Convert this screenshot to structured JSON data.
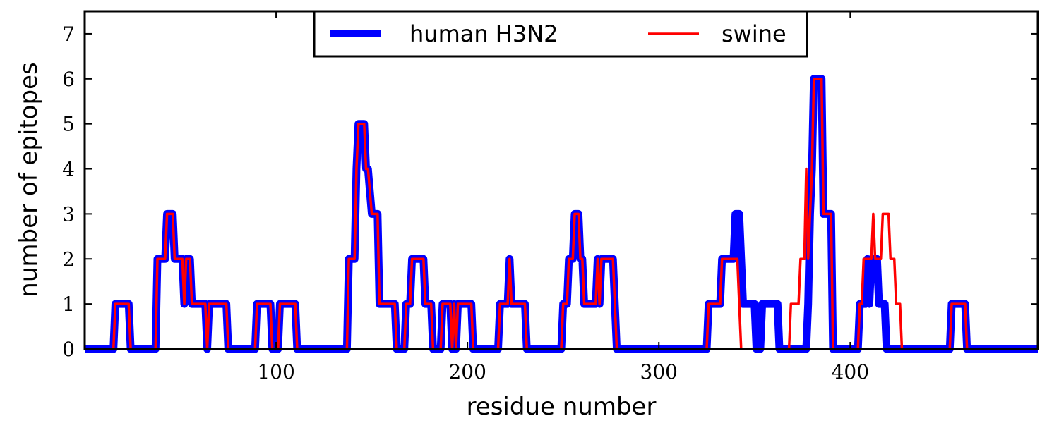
{
  "chart_data": {
    "type": "line",
    "xlabel": "residue number",
    "ylabel": "number of epitopes",
    "xlim": [
      0,
      498
    ],
    "ylim": [
      0,
      7.5
    ],
    "xticks": [
      100,
      200,
      300,
      400
    ],
    "yticks": [
      0,
      1,
      2,
      3,
      4,
      5,
      6,
      7
    ],
    "legend_position": "top-center",
    "series": [
      {
        "name": "human H3N2",
        "color": "#0000ff",
        "style": "thick",
        "points": [
          [
            0,
            0
          ],
          [
            15,
            0
          ],
          [
            16,
            1
          ],
          [
            23,
            1
          ],
          [
            24,
            0
          ],
          [
            37,
            0
          ],
          [
            38,
            2
          ],
          [
            42,
            2
          ],
          [
            43,
            3
          ],
          [
            46,
            3
          ],
          [
            47,
            2
          ],
          [
            51,
            2
          ],
          [
            52,
            1
          ],
          [
            53,
            2
          ],
          [
            55,
            2
          ],
          [
            56,
            1
          ],
          [
            63,
            1
          ],
          [
            64,
            0
          ],
          [
            65,
            1
          ],
          [
            74,
            1
          ],
          [
            75,
            0
          ],
          [
            89,
            0
          ],
          [
            90,
            1
          ],
          [
            97,
            1
          ],
          [
            98,
            0
          ],
          [
            101,
            0
          ],
          [
            102,
            1
          ],
          [
            110,
            1
          ],
          [
            111,
            0
          ],
          [
            137,
            0
          ],
          [
            138,
            2
          ],
          [
            141,
            2
          ],
          [
            142,
            4
          ],
          [
            143,
            5
          ],
          [
            146,
            5
          ],
          [
            147,
            4
          ],
          [
            148,
            4
          ],
          [
            150,
            3
          ],
          [
            153,
            3
          ],
          [
            154,
            1
          ],
          [
            162,
            1
          ],
          [
            163,
            0
          ],
          [
            167,
            0
          ],
          [
            168,
            1
          ],
          [
            170,
            1
          ],
          [
            171,
            2
          ],
          [
            177,
            2
          ],
          [
            178,
            1
          ],
          [
            181,
            1
          ],
          [
            182,
            0
          ],
          [
            186,
            0
          ],
          [
            187,
            1
          ],
          [
            191,
            1
          ],
          [
            192,
            0
          ],
          [
            193,
            1
          ],
          [
            194,
            0
          ],
          [
            195,
            1
          ],
          [
            202,
            1
          ],
          [
            203,
            0
          ],
          [
            216,
            0
          ],
          [
            217,
            1
          ],
          [
            221,
            1
          ],
          [
            222,
            2
          ],
          [
            223,
            1
          ],
          [
            230,
            1
          ],
          [
            231,
            0
          ],
          [
            249,
            0
          ],
          [
            250,
            1
          ],
          [
            252,
            1
          ],
          [
            253,
            2
          ],
          [
            255,
            2
          ],
          [
            256,
            3
          ],
          [
            258,
            3
          ],
          [
            259,
            2
          ],
          [
            260,
            2
          ],
          [
            261,
            1
          ],
          [
            267,
            1
          ],
          [
            268,
            2
          ],
          [
            269,
            1
          ],
          [
            270,
            2
          ],
          [
            276,
            2
          ],
          [
            277,
            1
          ],
          [
            278,
            0
          ],
          [
            325,
            0
          ],
          [
            326,
            1
          ],
          [
            332,
            1
          ],
          [
            333,
            2
          ],
          [
            339,
            2
          ],
          [
            340,
            3
          ],
          [
            342,
            3
          ],
          [
            343,
            2
          ],
          [
            344,
            1
          ],
          [
            350,
            1
          ],
          [
            351,
            0
          ],
          [
            353,
            0
          ],
          [
            354,
            1
          ],
          [
            362,
            1
          ],
          [
            363,
            0
          ],
          [
            377,
            0
          ],
          [
            378,
            1
          ],
          [
            379,
            3
          ],
          [
            380,
            4
          ],
          [
            381,
            6
          ],
          [
            385,
            6
          ],
          [
            386,
            3
          ],
          [
            390,
            3
          ],
          [
            391,
            0
          ],
          [
            404,
            0
          ],
          [
            405,
            1
          ],
          [
            408,
            1
          ],
          [
            409,
            2
          ],
          [
            410,
            1
          ],
          [
            411,
            2
          ],
          [
            414,
            2
          ],
          [
            415,
            1
          ],
          [
            418,
            1
          ],
          [
            419,
            0
          ],
          [
            452,
            0
          ],
          [
            453,
            1
          ],
          [
            460,
            1
          ],
          [
            461,
            0
          ],
          [
            498,
            0
          ]
        ]
      },
      {
        "name": "swine",
        "color": "#ff0000",
        "style": "thin",
        "points": [
          [
            0,
            0
          ],
          [
            15,
            0
          ],
          [
            16,
            1
          ],
          [
            23,
            1
          ],
          [
            24,
            0
          ],
          [
            37,
            0
          ],
          [
            38,
            2
          ],
          [
            42,
            2
          ],
          [
            43,
            3
          ],
          [
            46,
            3
          ],
          [
            47,
            2
          ],
          [
            51,
            2
          ],
          [
            52,
            1
          ],
          [
            53,
            2
          ],
          [
            55,
            2
          ],
          [
            56,
            1
          ],
          [
            63,
            1
          ],
          [
            64,
            0
          ],
          [
            65,
            1
          ],
          [
            74,
            1
          ],
          [
            75,
            0
          ],
          [
            89,
            0
          ],
          [
            90,
            1
          ],
          [
            97,
            1
          ],
          [
            98,
            0
          ],
          [
            101,
            0
          ],
          [
            102,
            1
          ],
          [
            110,
            1
          ],
          [
            111,
            0
          ],
          [
            137,
            0
          ],
          [
            138,
            2
          ],
          [
            141,
            2
          ],
          [
            142,
            4
          ],
          [
            143,
            5
          ],
          [
            146,
            5
          ],
          [
            147,
            4
          ],
          [
            148,
            4
          ],
          [
            150,
            3
          ],
          [
            153,
            3
          ],
          [
            154,
            1
          ],
          [
            162,
            1
          ],
          [
            163,
            0
          ],
          [
            167,
            0
          ],
          [
            168,
            1
          ],
          [
            170,
            1
          ],
          [
            171,
            2
          ],
          [
            177,
            2
          ],
          [
            178,
            1
          ],
          [
            181,
            1
          ],
          [
            182,
            0
          ],
          [
            186,
            0
          ],
          [
            187,
            1
          ],
          [
            191,
            1
          ],
          [
            192,
            0
          ],
          [
            193,
            1
          ],
          [
            194,
            0
          ],
          [
            195,
            1
          ],
          [
            202,
            1
          ],
          [
            203,
            0
          ],
          [
            216,
            0
          ],
          [
            217,
            1
          ],
          [
            221,
            1
          ],
          [
            222,
            2
          ],
          [
            223,
            1
          ],
          [
            230,
            1
          ],
          [
            231,
            0
          ],
          [
            249,
            0
          ],
          [
            250,
            1
          ],
          [
            252,
            1
          ],
          [
            253,
            2
          ],
          [
            255,
            2
          ],
          [
            256,
            3
          ],
          [
            258,
            3
          ],
          [
            259,
            2
          ],
          [
            260,
            2
          ],
          [
            261,
            1
          ],
          [
            267,
            1
          ],
          [
            268,
            2
          ],
          [
            269,
            1
          ],
          [
            270,
            2
          ],
          [
            276,
            2
          ],
          [
            277,
            1
          ],
          [
            278,
            0
          ],
          [
            325,
            0
          ],
          [
            326,
            1
          ],
          [
            332,
            1
          ],
          [
            333,
            2
          ],
          [
            341,
            2
          ],
          [
            343,
            0
          ],
          [
            368,
            0
          ],
          [
            369,
            1
          ],
          [
            373,
            1
          ],
          [
            374,
            2
          ],
          [
            376,
            2
          ],
          [
            377,
            4
          ],
          [
            378,
            2
          ],
          [
            379,
            3
          ],
          [
            380,
            4
          ],
          [
            381,
            6
          ],
          [
            385,
            6
          ],
          [
            386,
            3
          ],
          [
            390,
            3
          ],
          [
            391,
            0
          ],
          [
            404,
            0
          ],
          [
            405,
            1
          ],
          [
            406,
            1
          ],
          [
            407,
            2
          ],
          [
            411,
            2
          ],
          [
            412,
            3
          ],
          [
            413,
            2
          ],
          [
            416,
            2
          ],
          [
            417,
            3
          ],
          [
            420,
            3
          ],
          [
            421,
            2
          ],
          [
            423,
            2
          ],
          [
            424,
            1
          ],
          [
            426,
            1
          ],
          [
            427,
            0
          ],
          [
            452,
            0
          ],
          [
            453,
            1
          ],
          [
            460,
            1
          ],
          [
            461,
            0
          ],
          [
            498,
            0
          ]
        ]
      }
    ]
  }
}
